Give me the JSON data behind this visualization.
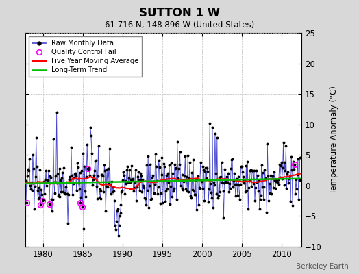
{
  "title": "SUTTON 1 W",
  "subtitle": "61.716 N, 148.896 W (United States)",
  "ylabel": "Temperature Anomaly (°C)",
  "credit": "Berkeley Earth",
  "start_year": 1977.75,
  "end_year": 2012.5,
  "ylim": [
    -10,
    25
  ],
  "yticks": [
    -10,
    -5,
    0,
    5,
    10,
    15,
    20,
    25
  ],
  "xticks": [
    1980,
    1985,
    1990,
    1995,
    2000,
    2005,
    2010
  ],
  "fig_bg_color": "#d8d8d8",
  "plot_bg_color": "#ffffff",
  "raw_color": "#4444cc",
  "ma_color": "#ff0000",
  "trend_color": "#00bb00",
  "qc_color": "#ff00ff",
  "marker_color": "#000000"
}
